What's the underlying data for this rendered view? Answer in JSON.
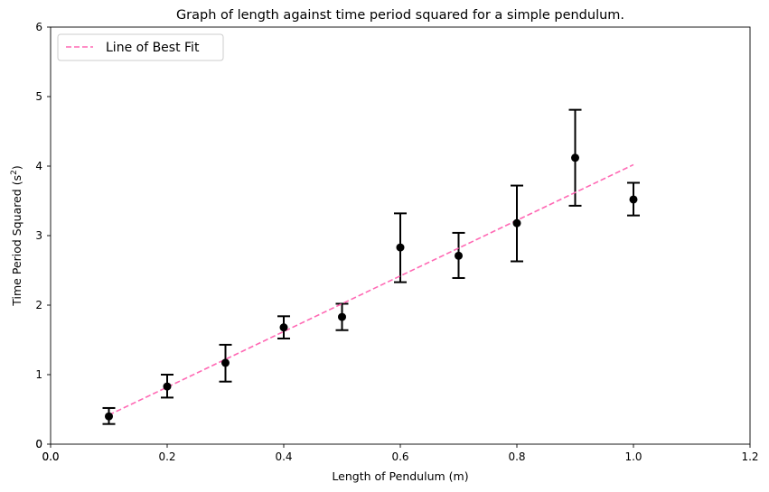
{
  "chart_data": {
    "type": "scatter",
    "title": "Graph of length against time period squared for a simple pendulum.",
    "xlabel": "Length of Pendulum (m)",
    "ylabel_main": "Time Period Squared (s",
    "ylabel_sup": "2",
    "ylabel_close": ")",
    "xlim": [
      0,
      1.2
    ],
    "ylim": [
      0,
      6
    ],
    "xticks": [
      0.0,
      0.2,
      0.4,
      0.6,
      0.8,
      1.0,
      1.2
    ],
    "xtick_labels": [
      "0.0",
      "0.2",
      "0.4",
      "0.6",
      "0.8",
      "1.0",
      "1.2"
    ],
    "extra_xtick_label": "0.0",
    "yticks": [
      0,
      1,
      2,
      3,
      4,
      5,
      6
    ],
    "ytick_labels": [
      "0",
      "1",
      "2",
      "3",
      "4",
      "5",
      "6"
    ],
    "extra_ytick_label": "0",
    "grid": false,
    "legend_position": "top-left",
    "series": [
      {
        "kind": "points-with-error-bars",
        "color": "#000000",
        "x": [
          0.1,
          0.2,
          0.3,
          0.4,
          0.5,
          0.6,
          0.7,
          0.8,
          0.9,
          1.0
        ],
        "y": [
          0.4,
          0.83,
          1.17,
          1.68,
          1.83,
          2.83,
          2.71,
          3.18,
          4.12,
          3.52
        ],
        "y_err_low": [
          0.29,
          0.67,
          0.9,
          1.52,
          1.64,
          2.33,
          2.39,
          2.63,
          3.43,
          3.29
        ],
        "y_err_high": [
          0.52,
          1.0,
          1.43,
          1.84,
          2.02,
          3.32,
          3.04,
          3.72,
          4.81,
          3.76
        ]
      },
      {
        "kind": "line",
        "name": "Line of Best Fit",
        "color": "#ff69b4",
        "dashed": true,
        "x": [
          0.1,
          1.0
        ],
        "y": [
          0.42,
          4.02
        ]
      }
    ]
  }
}
